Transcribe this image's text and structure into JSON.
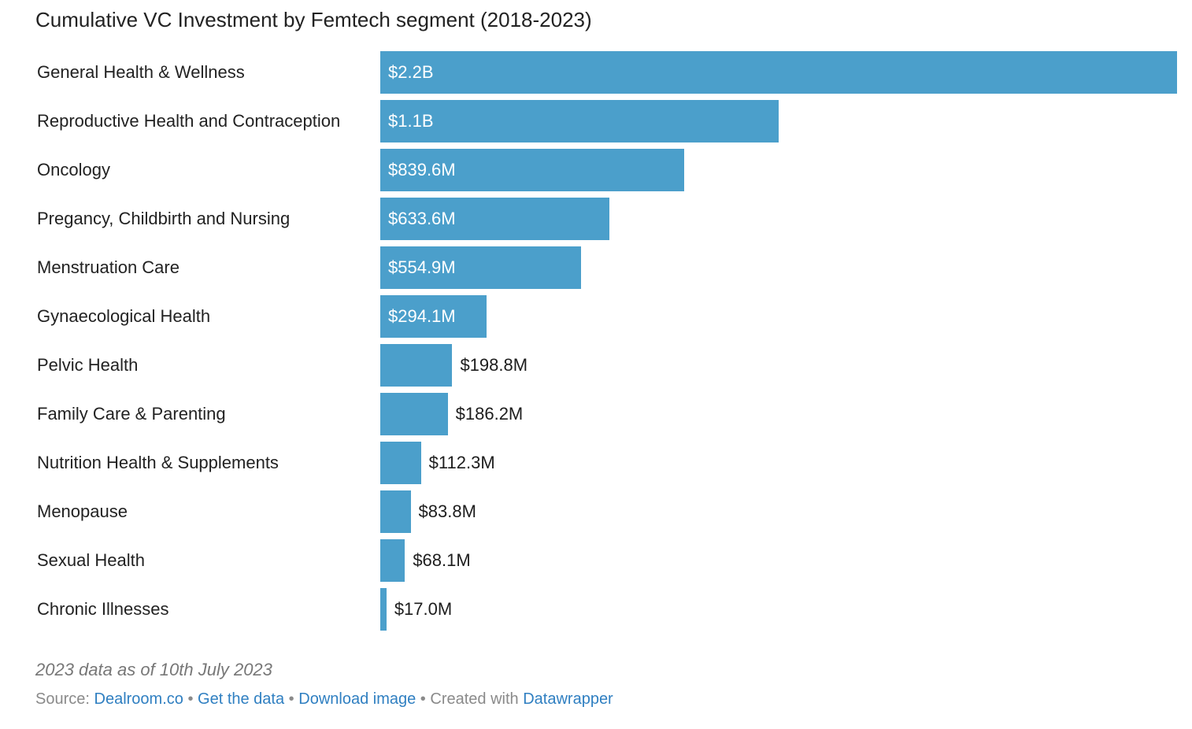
{
  "chart_data": {
    "type": "bar",
    "orientation": "horizontal",
    "title": "Cumulative VC Investment by Femtech segment (2018-2023)",
    "xlabel": "",
    "ylabel": "",
    "grid": false,
    "categories": [
      "General Health & Wellness",
      "Reproductive Health and Contraception",
      "Oncology",
      "Pregancy, Childbirth and Nursing",
      "Menstruation Care",
      "Gynaecological Health",
      "Pelvic Health",
      "Family Care & Parenting",
      "Nutrition Health & Supplements",
      "Menopause",
      "Sexual Health",
      "Chronic Illnesses"
    ],
    "values": [
      2200,
      1100,
      839.6,
      633.6,
      554.9,
      294.1,
      198.8,
      186.2,
      112.3,
      83.8,
      68.1,
      17.0
    ],
    "value_unit": "$M",
    "value_labels": [
      "$2.2B",
      "$1.1B",
      "$839.6M",
      "$633.6M",
      "$554.9M",
      "$294.1M",
      "$198.8M",
      "$186.2M",
      "$112.3M",
      "$83.8M",
      "$68.1M",
      "$17.0M"
    ],
    "xlim": [
      0,
      2200
    ],
    "bar_color": "#4b9fcb"
  },
  "notes": "2023 data as of 10th July 2023",
  "footer": {
    "source_prefix": "Source:",
    "source_link": "Dealroom.co",
    "separator": "•",
    "get_data": "Get the data",
    "download_image": "Download image",
    "created_with": "Created with",
    "tool_link": "Datawrapper"
  }
}
